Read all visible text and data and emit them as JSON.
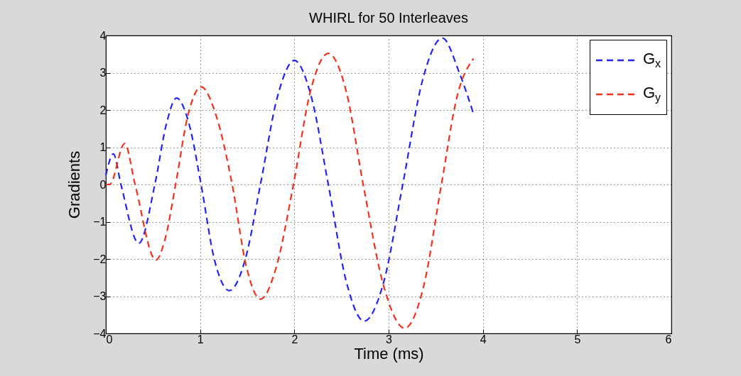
{
  "chart_data": {
    "type": "line",
    "title": "WHIRL for 50 Interleaves",
    "xlabel": "Time (ms)",
    "ylabel": "Gradients",
    "xlim": [
      0,
      6
    ],
    "xticks": [
      0,
      1,
      2,
      3,
      4,
      5,
      6
    ],
    "ylim": [
      -4,
      4
    ],
    "yticks": [
      -4,
      -3,
      -2,
      -1,
      0,
      1,
      2,
      3,
      4
    ],
    "grid": true,
    "legend": "top right",
    "line_style": "dashed",
    "series": [
      {
        "name": "G$_{x}$",
        "color": "#2323f5",
        "x": [
          0,
          0.08,
          0.16,
          0.35,
          0.52,
          0.64,
          0.75,
          0.88,
          1.01,
          1.15,
          1.31,
          1.48,
          1.64,
          1.82,
          2.0,
          2.18,
          2.36,
          2.55,
          2.74,
          2.95,
          3.15,
          3.36,
          3.57,
          3.75,
          3.9
        ],
        "values": [
          0.25,
          0.82,
          0,
          -1.58,
          0,
          1.6,
          2.32,
          1.65,
          0,
          -2.0,
          -2.85,
          -2.0,
          0,
          2.35,
          3.33,
          2.35,
          0,
          -2.6,
          -3.67,
          -2.6,
          0,
          2.8,
          3.93,
          3.0,
          1.9
        ]
      },
      {
        "name": "G$_{y}$",
        "color": "#f5301c",
        "x": [
          0,
          0.04,
          0.2,
          0.31,
          0.53,
          0.63,
          0.74,
          0.87,
          1.01,
          1.17,
          1.34,
          1.49,
          1.64,
          1.81,
          1.99,
          2.17,
          2.36,
          2.55,
          2.73,
          2.95,
          3.17,
          3.37,
          3.56,
          3.73,
          3.9
        ],
        "values": [
          0,
          0,
          1.1,
          0,
          -2.03,
          -1.45,
          0,
          1.85,
          2.62,
          1.85,
          0,
          -2.2,
          -3.08,
          -2.2,
          0,
          2.5,
          3.52,
          2.5,
          0,
          -2.75,
          -3.86,
          -2.75,
          0,
          2.4,
          3.38
        ]
      }
    ]
  }
}
